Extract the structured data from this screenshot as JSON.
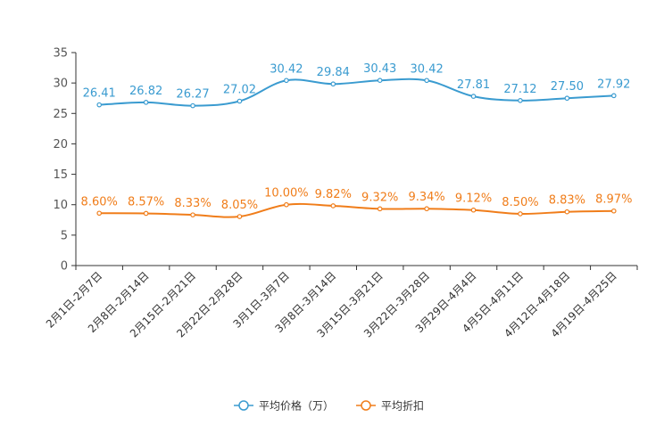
{
  "chart_data": {
    "type": "line",
    "title": "",
    "xlabel": "",
    "ylabel": "",
    "ylim": [
      0,
      35
    ],
    "yticks": [
      0,
      5,
      10,
      15,
      20,
      25,
      30,
      35
    ],
    "grid": false,
    "legend_position": "bottom",
    "categories": [
      "2月1日-2月7日",
      "2月8日-2月14日",
      "2月15日-2月21日",
      "2月22日-2月28日",
      "3月1日-3月7日",
      "3月8日-3月14日",
      "3月15日-3月21日",
      "3月22日-3月28日",
      "3月29日-4月4日",
      "4月5日-4月11日",
      "4月12日-4月18日",
      "4月19日-4月25日"
    ],
    "series": [
      {
        "name": "平均价格（万）",
        "color": "#3a9bd0",
        "values": [
          26.41,
          26.82,
          26.27,
          27.02,
          30.42,
          29.84,
          30.43,
          30.42,
          27.81,
          27.12,
          27.5,
          27.92
        ],
        "labels": [
          "26.41",
          "26.82",
          "26.27",
          "27.02",
          "30.42",
          "29.84",
          "30.43",
          "30.42",
          "27.81",
          "27.12",
          "27.50",
          "27.92"
        ]
      },
      {
        "name": "平均折扣",
        "color": "#f07d1a",
        "values": [
          8.6,
          8.57,
          8.33,
          8.05,
          10.0,
          9.82,
          9.32,
          9.34,
          9.12,
          8.5,
          8.83,
          8.97
        ],
        "labels": [
          "8.60%",
          "8.57%",
          "8.33%",
          "8.05%",
          "10.00%",
          "9.82%",
          "9.32%",
          "9.34%",
          "9.12%",
          "8.50%",
          "8.83%",
          "8.97%"
        ]
      }
    ]
  }
}
